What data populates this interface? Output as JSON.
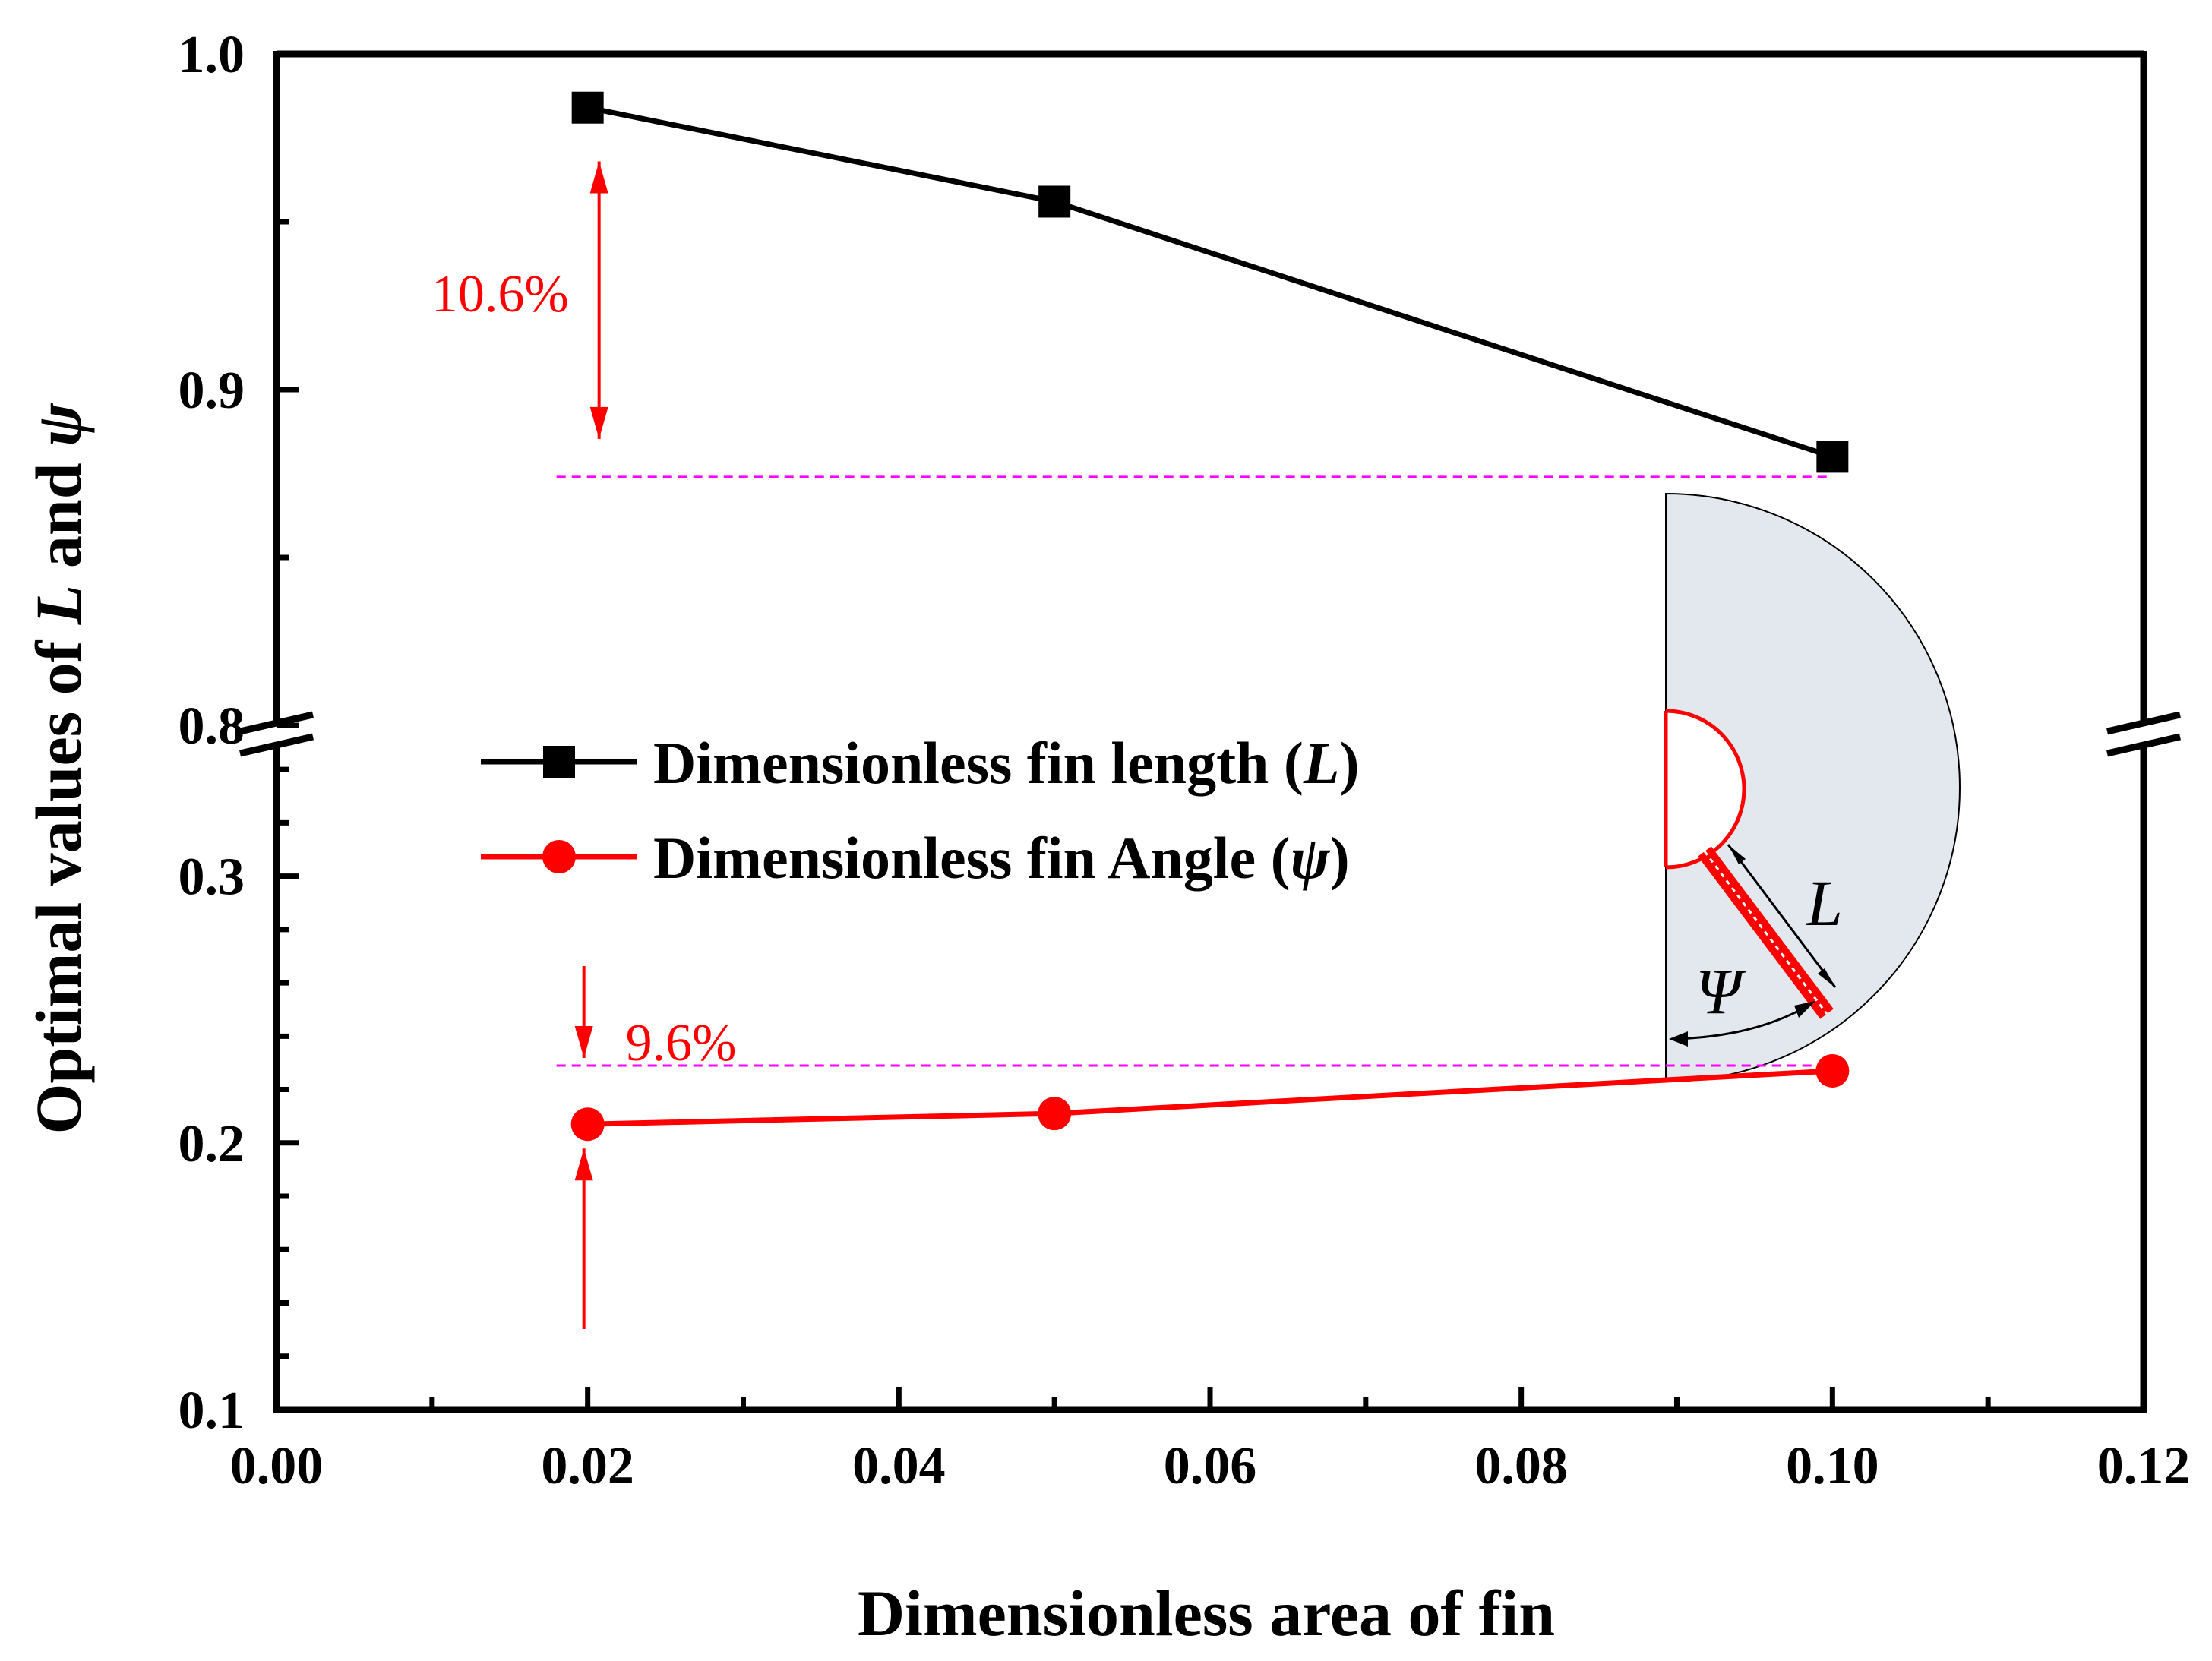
{
  "colors": {
    "series_L": "#000000",
    "series_psi": "#ff0000",
    "reference_line": "#ff00ff",
    "inset_fill": "#e3e8ee"
  },
  "chart_data": {
    "type": "line",
    "xlabel": "Dimensionless area of fin",
    "ylabel_parts": [
      "Optimal values of ",
      "L",
      " and ",
      "ψ"
    ],
    "xlim": [
      0.0,
      0.12
    ],
    "ylim_upper": [
      0.8,
      1.0
    ],
    "ylim_lower": [
      0.1,
      0.35
    ],
    "axis_break": true,
    "x_ticks": [
      "0.00",
      "0.02",
      "0.04",
      "0.06",
      "0.08",
      "0.10",
      "0.12"
    ],
    "y_ticks_upper": [
      "1.0",
      "0.9",
      "0.8"
    ],
    "y_ticks_lower": [
      "0.3",
      "0.2",
      "0.1"
    ],
    "series": [
      {
        "name": "Dimensionless fin length (L)",
        "legend_prefix": "Dimensionless fin length (",
        "legend_symbol": "L",
        "legend_suffix": ")",
        "marker": "square",
        "x": [
          0.02,
          0.05,
          0.1
        ],
        "y": [
          0.984,
          0.956,
          0.88
        ]
      },
      {
        "name": "Dimensionless fin Angle (ψ)",
        "legend_prefix": "Dimensionless fin Angle (",
        "legend_symbol": "ψ",
        "legend_suffix": ")",
        "marker": "circle",
        "x": [
          0.02,
          0.05,
          0.1
        ],
        "y": [
          0.207,
          0.211,
          0.227
        ]
      }
    ],
    "reference_lines": [
      {
        "y": 0.874,
        "x_from": 0.018,
        "x_to": 0.1
      },
      {
        "y": 0.229,
        "x_from": 0.018,
        "x_to": 0.1
      }
    ],
    "annotations": [
      {
        "text": "10.6%",
        "x": 0.02,
        "y_from": 0.874,
        "y_to": 0.968
      },
      {
        "text": "9.6%",
        "x": 0.02,
        "y_from": 0.229,
        "y_to": 0.207
      }
    ],
    "inset": {
      "length_label": "L",
      "angle_label": "Ψ"
    }
  }
}
